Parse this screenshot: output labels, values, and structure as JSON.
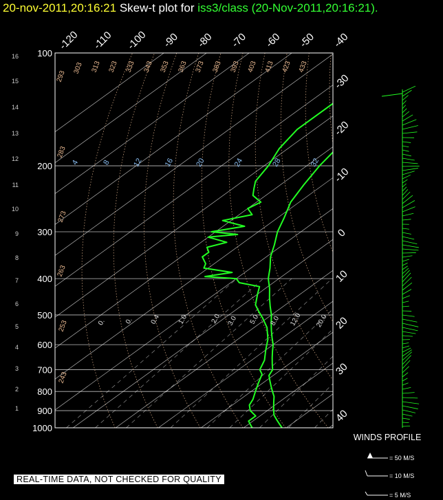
{
  "title": {
    "datetime": "20-nov-2011,20:16:21",
    "prefix": "Skew-t plot for",
    "station": "iss3/class",
    "paren": "(20-Nov-2011,20:16:21)."
  },
  "disclaimer": "REAL-TIME DATA, NOT CHECKED FOR QUALITY",
  "winds_label": "WINDS PROFILE",
  "wind_legend": [
    "= 50 M/S",
    "= 10 M/S",
    "= 5 M/S"
  ],
  "colors": {
    "axis": "#ffffff",
    "temp": "#22ff22",
    "dew": "#22ff22",
    "grid": "#ffffff",
    "isotherm": "#ffffff",
    "dry_adiabat": "#e8b890",
    "mixing_ratio": "#88bbee",
    "wind": "#22ff22"
  },
  "chart_data": {
    "type": "skew-t",
    "pressure_axis": {
      "ticks": [
        100,
        200,
        300,
        400,
        500,
        600,
        700,
        800,
        900,
        1000
      ],
      "range": [
        1000,
        100
      ]
    },
    "height_axis": {
      "ticks": [
        1,
        2,
        3,
        4,
        5,
        6,
        7,
        8,
        9,
        10,
        11,
        12,
        13,
        14,
        15,
        16
      ],
      "units": "km"
    },
    "top_temp_labels": [
      -120,
      -110,
      -100,
      -90,
      -80,
      -70,
      -60,
      -50,
      -40
    ],
    "right_temp_labels": [
      -30,
      -20,
      -10,
      0,
      10,
      20,
      30,
      40
    ],
    "dry_adiabat_labels": [
      "293",
      "303",
      "313",
      "323",
      "333",
      "343",
      "353",
      "363",
      "373",
      "383",
      "393",
      "403",
      "413",
      "423",
      "433",
      "283",
      "273",
      "263",
      "253",
      "243"
    ],
    "mixing_ratio_labels_200": [
      "4",
      "8",
      "12",
      "16",
      "20",
      "24",
      "28",
      "32"
    ],
    "mixing_ratio_labels_500": [
      "0.",
      "0.",
      "0.4",
      "1.0",
      "2.0",
      "3.0",
      "5.0",
      "8.0",
      "12.0",
      "20.0"
    ],
    "temperature": [
      [
        1000,
        9
      ],
      [
        975,
        7
      ],
      [
        950,
        5
      ],
      [
        925,
        3
      ],
      [
        900,
        1.5
      ],
      [
        875,
        0
      ],
      [
        850,
        -1.5
      ],
      [
        825,
        -3
      ],
      [
        800,
        -5
      ],
      [
        775,
        -7
      ],
      [
        750,
        -9
      ],
      [
        725,
        -11
      ],
      [
        700,
        -12
      ],
      [
        675,
        -14
      ],
      [
        650,
        -16
      ],
      [
        625,
        -18
      ],
      [
        600,
        -20
      ],
      [
        575,
        -22.5
      ],
      [
        550,
        -25
      ],
      [
        525,
        -27.5
      ],
      [
        500,
        -30
      ],
      [
        475,
        -33
      ],
      [
        450,
        -36
      ],
      [
        425,
        -39
      ],
      [
        400,
        -42.5
      ],
      [
        375,
        -45.5
      ],
      [
        350,
        -49
      ],
      [
        325,
        -52
      ],
      [
        300,
        -55.5
      ],
      [
        275,
        -58.5
      ],
      [
        250,
        -62
      ],
      [
        225,
        -64.5
      ],
      [
        200,
        -67
      ],
      [
        175,
        -69
      ],
      [
        150,
        -70
      ],
      [
        125,
        -68
      ],
      [
        110,
        -67
      ],
      [
        100,
        -66
      ]
    ],
    "dewpoint": [
      [
        1000,
        2
      ],
      [
        960,
        -1
      ],
      [
        930,
        -1
      ],
      [
        900,
        -4
      ],
      [
        870,
        -6
      ],
      [
        840,
        -7
      ],
      [
        800,
        -9
      ],
      [
        760,
        -11
      ],
      [
        720,
        -13
      ],
      [
        700,
        -15
      ],
      [
        660,
        -17
      ],
      [
        620,
        -20
      ],
      [
        580,
        -23
      ],
      [
        540,
        -27
      ],
      [
        510,
        -31
      ],
      [
        490,
        -34
      ],
      [
        470,
        -37
      ],
      [
        440,
        -40
      ],
      [
        420,
        -42
      ],
      [
        410,
        -48
      ],
      [
        400,
        -50
      ],
      [
        395,
        -58
      ],
      [
        385,
        -53
      ],
      [
        375,
        -61
      ],
      [
        365,
        -62
      ],
      [
        350,
        -65
      ],
      [
        340,
        -65
      ],
      [
        330,
        -67
      ],
      [
        320,
        -64
      ],
      [
        310,
        -70
      ],
      [
        305,
        -64
      ],
      [
        300,
        -71
      ],
      [
        290,
        -65
      ],
      [
        280,
        -72
      ],
      [
        270,
        -67
      ],
      [
        260,
        -70
      ],
      [
        250,
        -69
      ],
      [
        240,
        -73
      ],
      [
        230,
        -75
      ],
      [
        220,
        -77
      ],
      [
        200,
        -79
      ],
      [
        180,
        -82
      ],
      [
        160,
        -84
      ],
      [
        140,
        -84
      ],
      [
        120,
        -84
      ],
      [
        100,
        -83
      ]
    ]
  }
}
